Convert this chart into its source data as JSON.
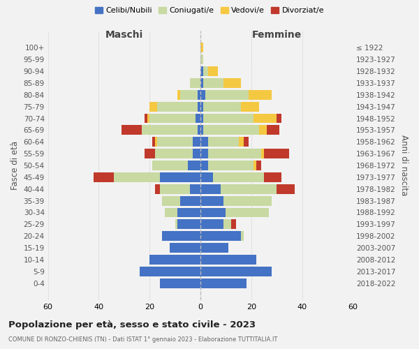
{
  "age_groups": [
    "0-4",
    "5-9",
    "10-14",
    "15-19",
    "20-24",
    "25-29",
    "30-34",
    "35-39",
    "40-44",
    "45-49",
    "50-54",
    "55-59",
    "60-64",
    "65-69",
    "70-74",
    "75-79",
    "80-84",
    "85-89",
    "90-94",
    "95-99",
    "100+"
  ],
  "birth_years": [
    "2018-2022",
    "2013-2017",
    "2008-2012",
    "2003-2007",
    "1998-2002",
    "1993-1997",
    "1988-1992",
    "1983-1987",
    "1978-1982",
    "1973-1977",
    "1968-1972",
    "1963-1967",
    "1958-1962",
    "1953-1957",
    "1948-1952",
    "1943-1947",
    "1938-1942",
    "1933-1937",
    "1928-1932",
    "1923-1927",
    "≤ 1922"
  ],
  "males": {
    "celibe": [
      16,
      24,
      20,
      12,
      15,
      9,
      9,
      8,
      4,
      16,
      5,
      3,
      3,
      1,
      2,
      1,
      1,
      0,
      0,
      0,
      0
    ],
    "coniugato": [
      0,
      0,
      0,
      0,
      0,
      1,
      5,
      7,
      12,
      18,
      14,
      15,
      14,
      22,
      18,
      16,
      7,
      4,
      0,
      0,
      0
    ],
    "vedovo": [
      0,
      0,
      0,
      0,
      0,
      0,
      0,
      0,
      0,
      0,
      0,
      0,
      1,
      0,
      1,
      3,
      1,
      0,
      0,
      0,
      0
    ],
    "divorziato": [
      0,
      0,
      0,
      0,
      0,
      0,
      0,
      0,
      2,
      8,
      0,
      4,
      1,
      8,
      1,
      0,
      0,
      0,
      0,
      0,
      0
    ]
  },
  "females": {
    "nubile": [
      18,
      28,
      22,
      11,
      16,
      9,
      10,
      9,
      8,
      5,
      3,
      3,
      3,
      1,
      1,
      1,
      2,
      1,
      1,
      0,
      0
    ],
    "coniugata": [
      0,
      0,
      0,
      0,
      1,
      3,
      17,
      19,
      22,
      20,
      18,
      21,
      12,
      22,
      20,
      15,
      17,
      8,
      2,
      1,
      0
    ],
    "vedova": [
      0,
      0,
      0,
      0,
      0,
      0,
      0,
      0,
      0,
      0,
      1,
      1,
      2,
      3,
      9,
      7,
      9,
      7,
      4,
      0,
      1
    ],
    "divorziata": [
      0,
      0,
      0,
      0,
      0,
      2,
      0,
      0,
      7,
      7,
      2,
      10,
      2,
      5,
      2,
      0,
      0,
      0,
      0,
      0,
      0
    ]
  },
  "colors": {
    "celibe": "#4472c4",
    "coniugato": "#c8d9a2",
    "vedovo": "#f5c842",
    "divorziato": "#c0392b"
  },
  "xlim": 60,
  "title": "Popolazione per età, sesso e stato civile - 2023",
  "subtitle": "COMUNE DI RONZO-CHIENIS (TN) - Dati ISTAT 1° gennaio 2023 - Elaborazione TUTTITALIA.IT",
  "ylabel_left": "Fasce di età",
  "ylabel_right": "Anni di nascita",
  "xlabel_left": "Maschi",
  "xlabel_right": "Femmine",
  "legend_labels": [
    "Celibi/Nubili",
    "Coniugati/e",
    "Vedovi/e",
    "Divorziat/e"
  ],
  "background_color": "#f2f2f2"
}
